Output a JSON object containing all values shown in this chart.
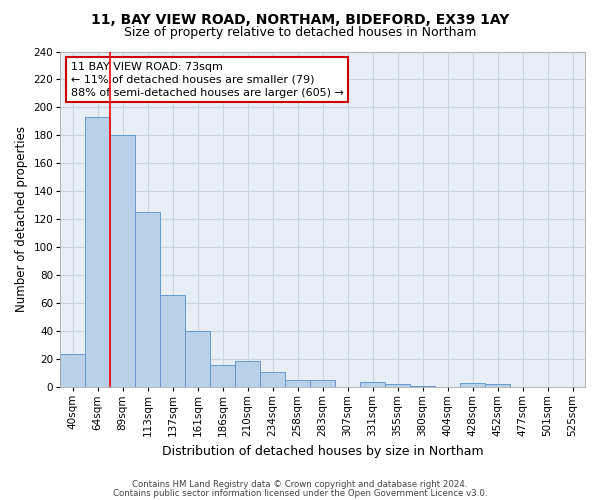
{
  "title1": "11, BAY VIEW ROAD, NORTHAM, BIDEFORD, EX39 1AY",
  "title2": "Size of property relative to detached houses in Northam",
  "xlabel": "Distribution of detached houses by size in Northam",
  "ylabel": "Number of detached properties",
  "bar_labels": [
    "40sqm",
    "64sqm",
    "89sqm",
    "113sqm",
    "137sqm",
    "161sqm",
    "186sqm",
    "210sqm",
    "234sqm",
    "258sqm",
    "283sqm",
    "307sqm",
    "331sqm",
    "355sqm",
    "380sqm",
    "404sqm",
    "428sqm",
    "452sqm",
    "477sqm",
    "501sqm",
    "525sqm"
  ],
  "bar_values": [
    24,
    193,
    180,
    125,
    66,
    40,
    16,
    19,
    11,
    5,
    5,
    0,
    4,
    2,
    1,
    0,
    3,
    2,
    0,
    0,
    0
  ],
  "bar_color": "#b8d0e8",
  "bar_edge_color": "#6699cc",
  "red_line_x": 1.5,
  "annotation_text": "11 BAY VIEW ROAD: 73sqm\n← 11% of detached houses are smaller (79)\n88% of semi-detached houses are larger (605) →",
  "annotation_box_color": "#ffffff",
  "annotation_box_edge_color": "#cc0000",
  "footer1": "Contains HM Land Registry data © Crown copyright and database right 2024.",
  "footer2": "Contains public sector information licensed under the Open Government Licence v3.0.",
  "bg_color": "#ffffff",
  "plot_bg_color": "#e8eef5",
  "grid_color": "#c8d4e4",
  "ylim": [
    0,
    240
  ],
  "yticks": [
    0,
    20,
    40,
    60,
    80,
    100,
    120,
    140,
    160,
    180,
    200,
    220,
    240
  ],
  "title1_fontsize": 10,
  "title2_fontsize": 9,
  "xlabel_fontsize": 9,
  "ylabel_fontsize": 8.5,
  "tick_fontsize": 7.5,
  "footer_fontsize": 6.2
}
